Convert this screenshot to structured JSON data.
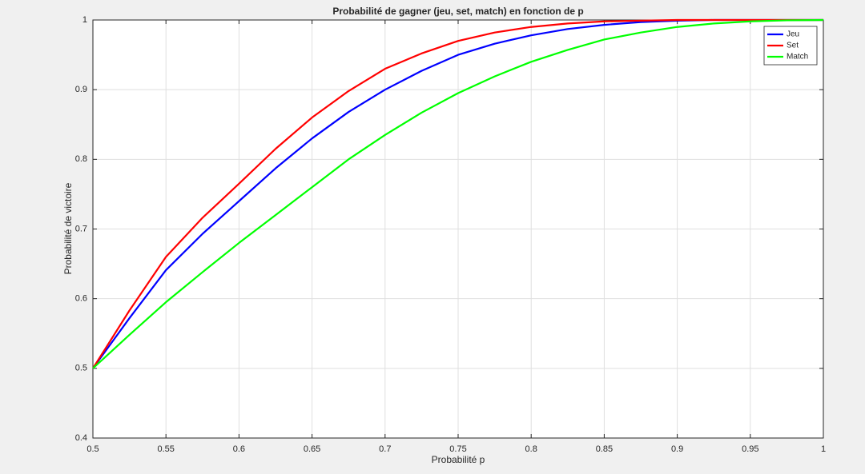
{
  "chart_data": {
    "type": "line",
    "title": "Probabilité de gagner (jeu, set, match) en fonction de p",
    "xlabel": "Probabilité p",
    "ylabel": "Probabilité de victoire",
    "x": [
      0.5,
      0.525,
      0.55,
      0.575,
      0.6,
      0.625,
      0.65,
      0.675,
      0.7,
      0.725,
      0.75,
      0.775,
      0.8,
      0.825,
      0.85,
      0.875,
      0.9,
      0.925,
      0.95,
      0.975,
      1
    ],
    "series": [
      {
        "name": "Jeu",
        "color": "#0000ff",
        "values": [
          0.5,
          0.572,
          0.641,
          0.693,
          0.74,
          0.787,
          0.83,
          0.868,
          0.9,
          0.927,
          0.95,
          0.966,
          0.978,
          0.987,
          0.993,
          0.997,
          0.999,
          1,
          1,
          1,
          1
        ]
      },
      {
        "name": "Set",
        "color": "#ff0000",
        "values": [
          0.5,
          0.583,
          0.66,
          0.716,
          0.765,
          0.815,
          0.86,
          0.898,
          0.93,
          0.952,
          0.97,
          0.982,
          0.99,
          0.995,
          0.998,
          0.999,
          1,
          1,
          1,
          1,
          1
        ]
      },
      {
        "name": "Match",
        "color": "#00ff00",
        "values": [
          0.5,
          0.548,
          0.595,
          0.638,
          0.68,
          0.72,
          0.76,
          0.8,
          0.835,
          0.867,
          0.895,
          0.919,
          0.94,
          0.957,
          0.972,
          0.982,
          0.99,
          0.995,
          0.998,
          0.9995,
          1
        ]
      }
    ],
    "xlim": [
      0.5,
      1
    ],
    "xticks": [
      0.5,
      0.55,
      0.6,
      0.65,
      0.7,
      0.75,
      0.8,
      0.85,
      0.9,
      0.95,
      1
    ],
    "ylim": [
      0.4,
      1
    ],
    "yticks": [
      0.4,
      0.5,
      0.6,
      0.7,
      0.8,
      0.9,
      1
    ],
    "grid": true,
    "legend": "top-right"
  }
}
